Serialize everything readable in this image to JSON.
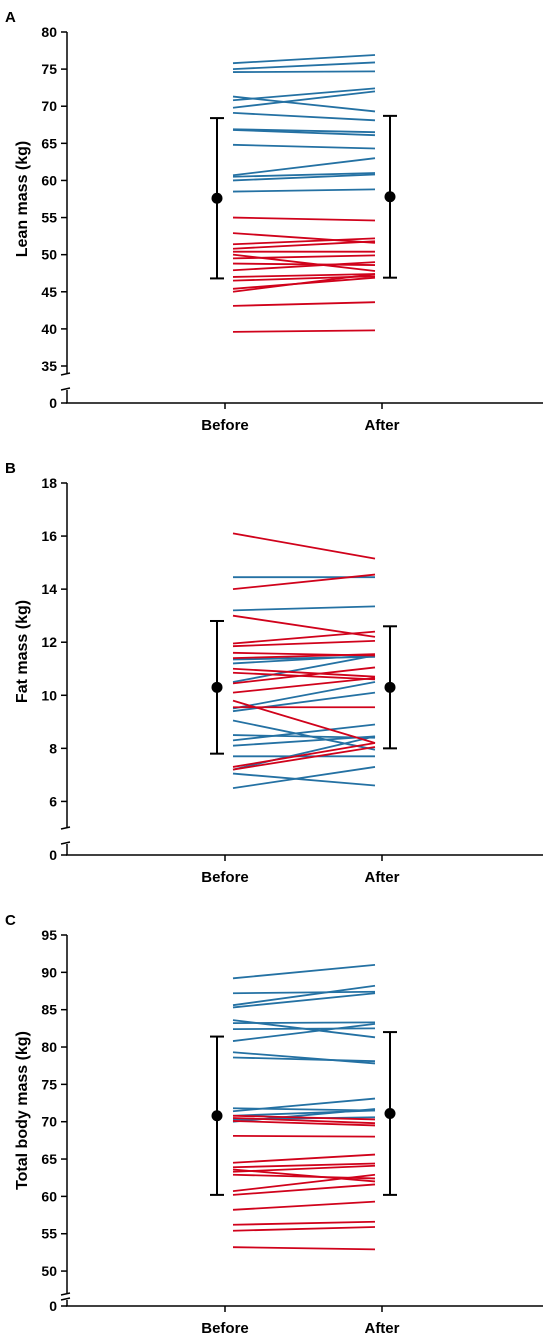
{
  "colors": {
    "group_blue": "#2471a3",
    "group_red": "#d0021b",
    "axis": "#000000"
  },
  "chart_data": [
    {
      "panel": "A",
      "type": "line",
      "ylabel": "Lean mass (kg)",
      "categories": [
        "Before",
        "After"
      ],
      "ylim": [
        35,
        80
      ],
      "yticks": [
        35,
        40,
        45,
        50,
        55,
        60,
        65,
        70,
        75,
        80
      ],
      "broken_axis": true,
      "zero_tick": "0",
      "summary": {
        "before": {
          "mean": 57.6,
          "sd_low": 46.8,
          "sd_high": 68.4
        },
        "after": {
          "mean": 57.8,
          "sd_low": 46.9,
          "sd_high": 68.7
        }
      },
      "blue_lines": [
        [
          75.8,
          76.9
        ],
        [
          75.0,
          75.9
        ],
        [
          74.6,
          74.7
        ],
        [
          71.3,
          69.3
        ],
        [
          70.8,
          72.4
        ],
        [
          69.8,
          72.0
        ],
        [
          69.1,
          68.1
        ],
        [
          66.9,
          66.5
        ],
        [
          66.8,
          66.1
        ],
        [
          64.8,
          64.3
        ],
        [
          60.7,
          63.0
        ],
        [
          60.5,
          61.0
        ],
        [
          60.0,
          60.8
        ],
        [
          58.5,
          58.8
        ]
      ],
      "red_lines": [
        [
          55.0,
          54.6
        ],
        [
          52.9,
          51.6
        ],
        [
          51.4,
          52.2
        ],
        [
          50.8,
          51.8
        ],
        [
          50.4,
          50.4
        ],
        [
          50.0,
          47.8
        ],
        [
          49.5,
          49.9
        ],
        [
          48.8,
          48.6
        ],
        [
          47.9,
          49.0
        ],
        [
          47.0,
          47.4
        ],
        [
          46.5,
          47.1
        ],
        [
          45.4,
          46.9
        ],
        [
          45.0,
          47.4
        ],
        [
          43.1,
          43.6
        ],
        [
          39.6,
          39.8
        ]
      ]
    },
    {
      "panel": "B",
      "type": "line",
      "ylabel": "Fat mass (kg)",
      "categories": [
        "Before",
        "After"
      ],
      "ylim": [
        5.3,
        18
      ],
      "yticks": [
        6,
        8,
        10,
        12,
        14,
        16,
        18
      ],
      "broken_axis": true,
      "zero_tick": "0",
      "summary": {
        "before": {
          "mean": 10.3,
          "sd_low": 7.8,
          "sd_high": 12.8
        },
        "after": {
          "mean": 10.3,
          "sd_low": 8.0,
          "sd_high": 12.6
        }
      },
      "blue_lines": [
        [
          14.45,
          14.45
        ],
        [
          13.2,
          13.35
        ],
        [
          11.35,
          11.45
        ],
        [
          11.2,
          11.5
        ],
        [
          10.5,
          11.5
        ],
        [
          9.5,
          10.5
        ],
        [
          9.4,
          10.1
        ],
        [
          9.05,
          7.95
        ],
        [
          8.5,
          8.4
        ],
        [
          8.3,
          8.9
        ],
        [
          8.1,
          8.45
        ],
        [
          7.7,
          7.7
        ],
        [
          7.2,
          8.45
        ],
        [
          7.05,
          6.6
        ],
        [
          6.5,
          7.3
        ]
      ],
      "red_lines": [
        [
          16.1,
          15.15
        ],
        [
          14.0,
          14.55
        ],
        [
          13.0,
          12.2
        ],
        [
          11.95,
          12.4
        ],
        [
          11.85,
          12.05
        ],
        [
          11.6,
          11.5
        ],
        [
          11.4,
          11.55
        ],
        [
          11.0,
          10.7
        ],
        [
          10.85,
          10.6
        ],
        [
          10.45,
          11.05
        ],
        [
          10.1,
          10.65
        ],
        [
          9.8,
          8.2
        ],
        [
          9.55,
          9.55
        ],
        [
          7.3,
          8.2
        ],
        [
          7.2,
          8.05
        ]
      ]
    },
    {
      "panel": "C",
      "type": "line",
      "ylabel": "Total body mass (kg)",
      "categories": [
        "Before",
        "After"
      ],
      "ylim": [
        48,
        95
      ],
      "yticks": [
        50,
        55,
        60,
        65,
        70,
        75,
        80,
        85,
        90,
        95
      ],
      "broken_axis": true,
      "zero_tick": "0",
      "summary": {
        "before": {
          "mean": 70.8,
          "sd_low": 60.2,
          "sd_high": 81.4
        },
        "after": {
          "mean": 71.1,
          "sd_low": 60.2,
          "sd_high": 82.0
        }
      },
      "blue_lines": [
        [
          89.2,
          91.0
        ],
        [
          87.2,
          87.4
        ],
        [
          85.6,
          88.2
        ],
        [
          85.3,
          87.2
        ],
        [
          83.6,
          81.3
        ],
        [
          83.2,
          83.3
        ],
        [
          82.4,
          82.5
        ],
        [
          80.8,
          83.1
        ],
        [
          79.3,
          77.8
        ],
        [
          78.6,
          78.1
        ],
        [
          71.8,
          71.5
        ],
        [
          71.4,
          73.1
        ],
        [
          70.8,
          71.5
        ],
        [
          70.3,
          70.6
        ],
        [
          70.0,
          71.7
        ]
      ],
      "red_lines": [
        [
          70.8,
          70.3
        ],
        [
          70.5,
          69.8
        ],
        [
          70.1,
          69.5
        ],
        [
          68.1,
          68.0
        ],
        [
          64.5,
          65.6
        ],
        [
          63.9,
          64.4
        ],
        [
          63.6,
          62.0
        ],
        [
          63.3,
          64.1
        ],
        [
          62.9,
          62.4
        ],
        [
          60.7,
          62.9
        ],
        [
          60.2,
          61.6
        ],
        [
          58.2,
          59.3
        ],
        [
          56.2,
          56.6
        ],
        [
          55.4,
          55.9
        ],
        [
          53.2,
          52.9
        ]
      ]
    }
  ]
}
